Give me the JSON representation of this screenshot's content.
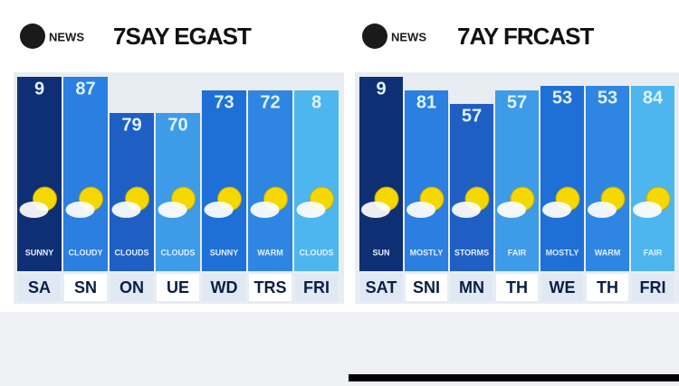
{
  "left": {
    "logo": "NEWS",
    "title": "7SAY EGAST",
    "days": [
      {
        "high": "9",
        "condition": "SUNNY",
        "day": "SA"
      },
      {
        "high": "87",
        "condition": "CLOUDY",
        "day": "SN"
      },
      {
        "high": "79",
        "condition": "CLOUDS",
        "day": "ON"
      },
      {
        "high": "70",
        "condition": "CLOUDS",
        "day": "UE"
      },
      {
        "high": "73",
        "condition": "SUNNY",
        "day": "WD"
      },
      {
        "high": "72",
        "condition": "WARM",
        "day": "TRS"
      },
      {
        "high": "8",
        "condition": "CLOUDS",
        "day": "FRI"
      }
    ]
  },
  "right": {
    "logo": "NEWS",
    "title": "7AY FRCAST",
    "days": [
      {
        "high": "9",
        "condition": "SUN",
        "day": "SAT"
      },
      {
        "high": "81",
        "condition": "MOSTLY",
        "day": "SNI"
      },
      {
        "high": "57",
        "condition": "STORMS",
        "day": "MN"
      },
      {
        "high": "57",
        "condition": "FAIR",
        "day": "TH"
      },
      {
        "high": "53",
        "condition": "MOSTLY",
        "day": "WE"
      },
      {
        "high": "53",
        "condition": "WARM",
        "day": "TH"
      },
      {
        "high": "84",
        "condition": "FAIR",
        "day": "FRI"
      }
    ]
  }
}
